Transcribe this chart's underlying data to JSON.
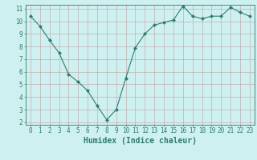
{
  "x": [
    0,
    1,
    2,
    3,
    4,
    5,
    6,
    7,
    8,
    9,
    10,
    11,
    12,
    13,
    14,
    15,
    16,
    17,
    18,
    19,
    20,
    21,
    22,
    23
  ],
  "y": [
    10.4,
    9.6,
    8.5,
    7.5,
    5.8,
    5.2,
    4.5,
    3.3,
    2.2,
    3.0,
    5.5,
    7.9,
    9.0,
    9.7,
    9.9,
    10.1,
    11.2,
    10.4,
    10.2,
    10.4,
    10.4,
    11.1,
    10.7,
    10.4
  ],
  "line_color": "#2e7d6e",
  "marker": "D",
  "marker_size": 2,
  "bg_color": "#cff0f0",
  "grid_color": "#c0a0a0",
  "xlabel": "Humidex (Indice chaleur)",
  "ylim": [
    2,
    11
  ],
  "yticks": [
    2,
    3,
    4,
    5,
    6,
    7,
    8,
    9,
    10,
    11
  ],
  "xticks": [
    0,
    1,
    2,
    3,
    4,
    5,
    6,
    7,
    8,
    9,
    10,
    11,
    12,
    13,
    14,
    15,
    16,
    17,
    18,
    19,
    20,
    21,
    22,
    23
  ],
  "label_color": "#2e7d6e",
  "tick_color": "#2e7d6e",
  "label_fontsize": 6,
  "tick_fontsize": 5.5,
  "xlabel_fontsize": 7
}
